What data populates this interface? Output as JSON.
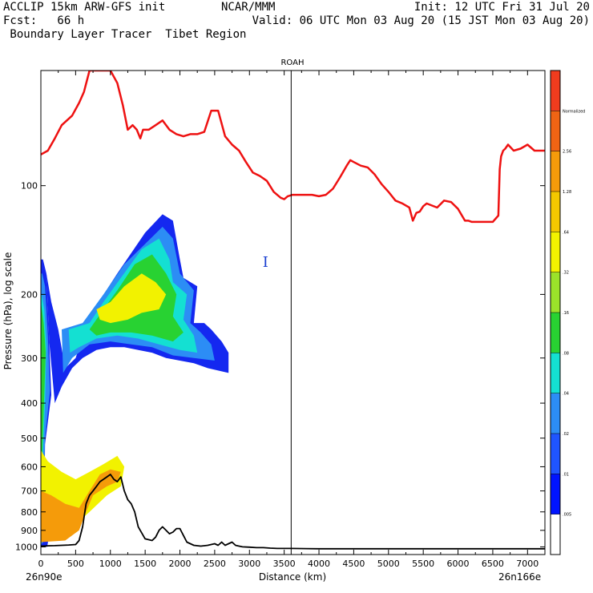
{
  "header": {
    "line1_left": "ACCLIP 15km ARW-GFS init",
    "line1_mid": "NCAR/MMM",
    "line1_right": "Init: 12 UTC Fri 31 Jul 20",
    "line2_left": "Fcst:   66 h",
    "line2_right": "Valid: 06 UTC Mon 03 Aug 20 (15 JST Mon 03 Aug 20)",
    "line3_left": " Boundary Layer Tracer  Tibet Region"
  },
  "chart_data": {
    "type": "heatmap",
    "title": "ROAH",
    "xlabel": "Distance (km)",
    "ylabel": "Pressure (hPa), log scale",
    "x_start_label": "26n90e",
    "x_end_label": "26n166e",
    "xlim": [
      0,
      7250
    ],
    "ylim": [
      1050,
      48
    ],
    "x_ticks": [
      0,
      500,
      1000,
      1500,
      2000,
      2500,
      3000,
      3500,
      4000,
      4500,
      5000,
      5500,
      6000,
      6500,
      7000
    ],
    "y_ticks": [
      100,
      200,
      300,
      400,
      500,
      600,
      700,
      800,
      900,
      1000
    ],
    "vertical_marker_km": 3600,
    "marker_label": "I",
    "tropopause_series": {
      "name": "",
      "color": "#ee1111",
      "x": [
        0,
        100,
        200,
        300,
        450,
        550,
        620,
        700,
        800,
        900,
        1000,
        1100,
        1180,
        1250,
        1320,
        1380,
        1430,
        1470,
        1550,
        1650,
        1750,
        1850,
        1950,
        2050,
        2150,
        2250,
        2350,
        2450,
        2550,
        2650,
        2750,
        2850,
        2950,
        3050,
        3150,
        3250,
        3350,
        3450,
        3500,
        3550,
        3620,
        3700,
        3800,
        3900,
        4000,
        4100,
        4200,
        4300,
        4400,
        4450,
        4500,
        4600,
        4700,
        4800,
        4900,
        5000,
        5100,
        5200,
        5300,
        5350,
        5400,
        5450,
        5500,
        5550,
        5600,
        5700,
        5800,
        5900,
        6000,
        6100,
        6150,
        6200,
        6300,
        6400,
        6500,
        6580,
        6600,
        6620,
        6650,
        6680,
        6720,
        6800,
        6900,
        7000,
        7100,
        7200,
        7250
      ],
      "y": [
        82,
        80,
        74,
        68,
        64,
        59,
        55,
        46,
        45,
        48,
        46,
        52,
        60,
        70,
        68,
        70,
        74,
        70,
        70,
        68,
        66,
        70,
        72,
        73,
        72,
        72,
        71,
        62,
        62,
        73,
        77,
        80,
        86,
        92,
        94,
        97,
        104,
        108,
        109,
        107,
        106,
        106,
        106,
        106,
        107,
        106,
        102,
        95,
        88,
        85,
        86,
        88,
        89,
        93,
        99,
        104,
        110,
        112,
        115,
        125,
        119,
        118,
        114,
        112,
        113,
        115,
        110,
        111,
        116,
        125,
        125,
        126,
        126,
        126,
        126,
        121,
        90,
        83,
        80,
        79,
        77,
        80,
        79,
        77,
        80,
        80,
        80
      ]
    },
    "terrain_series": {
      "name": "",
      "color": "#000000",
      "x": [
        0,
        100,
        200,
        300,
        400,
        500,
        550,
        600,
        650,
        700,
        750,
        800,
        850,
        900,
        950,
        1000,
        1050,
        1100,
        1150,
        1200,
        1250,
        1300,
        1350,
        1400,
        1500,
        1600,
        1650,
        1700,
        1750,
        1800,
        1850,
        1900,
        1950,
        2000,
        2050,
        2100,
        2200,
        2300,
        2400,
        2500,
        2550,
        2600,
        2650,
        2700,
        2750,
        2800,
        2850,
        2900,
        3000,
        3100,
        3200,
        3300,
        3400,
        3600,
        4000,
        4500,
        5000,
        5500,
        6000,
        6500,
        7000,
        7250
      ],
      "y": [
        995,
        993,
        992,
        990,
        988,
        985,
        960,
        880,
        760,
        720,
        700,
        680,
        660,
        650,
        640,
        630,
        650,
        660,
        640,
        700,
        740,
        760,
        800,
        880,
        950,
        960,
        940,
        900,
        880,
        900,
        920,
        910,
        890,
        890,
        930,
        970,
        990,
        995,
        990,
        980,
        990,
        970,
        990,
        980,
        970,
        990,
        995,
        1000,
        1002,
        1005,
        1005,
        1008,
        1010,
        1010,
        1012,
        1012,
        1012,
        1012,
        1012,
        1012,
        1012,
        1012
      ]
    },
    "colorbar": {
      "levels": [
        ".005",
        ".01",
        ".02",
        ".04",
        ".08",
        ".16",
        ".32",
        ".64",
        "1.28",
        "2.56",
        "Normalized"
      ],
      "colors": [
        "#ffffff",
        "#0014ff",
        "#1f55ff",
        "#2c8df5",
        "#14e0d2",
        "#28d232",
        "#9be22a",
        "#f2f200",
        "#f4c800",
        "#f59b0a",
        "#f06414",
        "#f03c1e"
      ]
    },
    "tracer_regions": [
      {
        "level": 1,
        "color": "#1428f0",
        "polygon": [
          [
            30,
            160
          ],
          [
            80,
            175
          ],
          [
            120,
            270
          ],
          [
            150,
            380
          ],
          [
            60,
            520
          ],
          [
            50,
            780
          ],
          [
            120,
            930
          ],
          [
            90,
            1000
          ],
          [
            0,
            1000
          ],
          [
            0,
            160
          ]
        ]
      },
      {
        "level": 1,
        "color": "#1428f0",
        "polygon": [
          [
            80,
            175
          ],
          [
            150,
            210
          ],
          [
            250,
            250
          ],
          [
            350,
            320
          ],
          [
            500,
            300
          ],
          [
            700,
            230
          ],
          [
            1100,
            175
          ],
          [
            1500,
            135
          ],
          [
            1750,
            120
          ],
          [
            1900,
            125
          ],
          [
            2000,
            160
          ],
          [
            2050,
            180
          ],
          [
            2250,
            190
          ],
          [
            2200,
            240
          ],
          [
            2350,
            240
          ],
          [
            2450,
            250
          ],
          [
            2600,
            270
          ],
          [
            2700,
            290
          ],
          [
            2700,
            330
          ],
          [
            2550,
            325
          ],
          [
            2400,
            320
          ],
          [
            2200,
            310
          ],
          [
            2000,
            305
          ],
          [
            1800,
            300
          ],
          [
            1600,
            290
          ],
          [
            1400,
            285
          ],
          [
            1200,
            280
          ],
          [
            1000,
            280
          ],
          [
            800,
            285
          ],
          [
            600,
            300
          ],
          [
            450,
            320
          ],
          [
            300,
            360
          ],
          [
            200,
            400
          ],
          [
            120,
            270
          ]
        ]
      },
      {
        "level": 2,
        "color": "#2c8df5",
        "polygon": [
          [
            20,
            175
          ],
          [
            60,
            190
          ],
          [
            100,
            260
          ],
          [
            130,
            370
          ],
          [
            60,
            500
          ],
          [
            40,
            750
          ],
          [
            110,
            920
          ],
          [
            0,
            990
          ],
          [
            0,
            175
          ]
        ]
      },
      {
        "level": 2,
        "color": "#2c8df5",
        "polygon": [
          [
            300,
            250
          ],
          [
            600,
            240
          ],
          [
            900,
            200
          ],
          [
            1200,
            165
          ],
          [
            1500,
            145
          ],
          [
            1750,
            130
          ],
          [
            1900,
            140
          ],
          [
            2000,
            175
          ],
          [
            2200,
            195
          ],
          [
            2150,
            240
          ],
          [
            2300,
            255
          ],
          [
            2450,
            275
          ],
          [
            2500,
            305
          ],
          [
            2200,
            300
          ],
          [
            1900,
            295
          ],
          [
            1600,
            280
          ],
          [
            1300,
            275
          ],
          [
            1000,
            270
          ],
          [
            700,
            275
          ],
          [
            450,
            300
          ],
          [
            320,
            330
          ]
        ]
      },
      {
        "level": 4,
        "color": "#14e0d2",
        "polygon": [
          [
            10,
            200
          ],
          [
            50,
            220
          ],
          [
            80,
            280
          ],
          [
            60,
            400
          ],
          [
            30,
            550
          ],
          [
            70,
            700
          ],
          [
            90,
            880
          ],
          [
            0,
            960
          ],
          [
            0,
            200
          ]
        ]
      },
      {
        "level": 4,
        "color": "#14e0d2",
        "polygon": [
          [
            400,
            250
          ],
          [
            700,
            240
          ],
          [
            900,
            210
          ],
          [
            1150,
            180
          ],
          [
            1450,
            150
          ],
          [
            1700,
            140
          ],
          [
            1850,
            160
          ],
          [
            1900,
            185
          ],
          [
            2100,
            200
          ],
          [
            2050,
            235
          ],
          [
            2200,
            260
          ],
          [
            2250,
            290
          ],
          [
            2000,
            285
          ],
          [
            1700,
            275
          ],
          [
            1400,
            265
          ],
          [
            1100,
            260
          ],
          [
            800,
            265
          ],
          [
            550,
            280
          ],
          [
            420,
            290
          ]
        ]
      },
      {
        "level": 5,
        "color": "#28d232",
        "polygon": [
          [
            0,
            210
          ],
          [
            40,
            240
          ],
          [
            70,
            290
          ],
          [
            40,
            420
          ],
          [
            20,
            560
          ],
          [
            60,
            720
          ],
          [
            70,
            850
          ],
          [
            0,
            920
          ]
        ]
      },
      {
        "level": 5,
        "color": "#28d232",
        "polygon": [
          [
            700,
            250
          ],
          [
            900,
            220
          ],
          [
            1100,
            195
          ],
          [
            1350,
            165
          ],
          [
            1600,
            155
          ],
          [
            1800,
            175
          ],
          [
            1950,
            200
          ],
          [
            1900,
            230
          ],
          [
            2050,
            255
          ],
          [
            1900,
            270
          ],
          [
            1600,
            260
          ],
          [
            1300,
            255
          ],
          [
            1000,
            255
          ],
          [
            800,
            260
          ]
        ]
      },
      {
        "level": 7,
        "color": "#f2f200",
        "polygon": [
          [
            800,
            220
          ],
          [
            1000,
            210
          ],
          [
            1200,
            190
          ],
          [
            1450,
            175
          ],
          [
            1650,
            185
          ],
          [
            1800,
            200
          ],
          [
            1700,
            220
          ],
          [
            1450,
            225
          ],
          [
            1250,
            235
          ],
          [
            1000,
            240
          ],
          [
            850,
            235
          ]
        ]
      },
      {
        "level": 7,
        "color": "#f2f200",
        "polygon": [
          [
            0,
            540
          ],
          [
            100,
            580
          ],
          [
            300,
            620
          ],
          [
            500,
            650
          ],
          [
            700,
            620
          ],
          [
            900,
            590
          ],
          [
            1100,
            560
          ],
          [
            1200,
            600
          ],
          [
            1150,
            680
          ],
          [
            950,
            720
          ],
          [
            700,
            800
          ],
          [
            550,
            850
          ],
          [
            400,
            900
          ],
          [
            200,
            920
          ],
          [
            0,
            920
          ]
        ]
      },
      {
        "level": 9,
        "color": "#f59b0a",
        "polygon": [
          [
            0,
            700
          ],
          [
            150,
            720
          ],
          [
            350,
            760
          ],
          [
            550,
            780
          ],
          [
            700,
            700
          ],
          [
            850,
            630
          ],
          [
            1000,
            610
          ],
          [
            1150,
            620
          ],
          [
            1100,
            660
          ],
          [
            950,
            680
          ],
          [
            750,
            720
          ],
          [
            650,
            800
          ],
          [
            550,
            900
          ],
          [
            350,
            960
          ],
          [
            0,
            970
          ]
        ]
      }
    ]
  }
}
